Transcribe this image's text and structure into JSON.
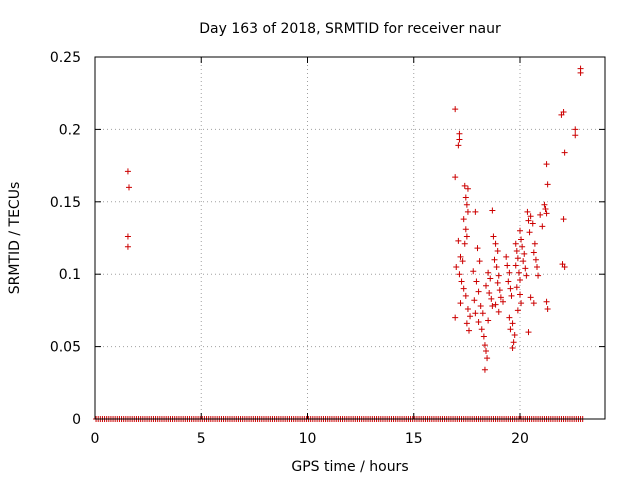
{
  "chart_data": {
    "type": "scatter",
    "title": "Day 163 of 2018, SRMTID for receiver naur",
    "xlabel": "GPS time / hours",
    "ylabel": "SRMTID / TECUs",
    "xlim": [
      0,
      24
    ],
    "ylim": [
      0,
      0.25
    ],
    "xticks": [
      0,
      5,
      10,
      15,
      20
    ],
    "xtick_labels": [
      "0",
      "5",
      "10",
      "15",
      "20"
    ],
    "yticks": [
      0,
      0.05,
      0.1,
      0.15,
      0.2,
      0.25
    ],
    "ytick_labels": [
      "0",
      "0.05",
      "0.1",
      "0.15",
      "0.2",
      "0.25"
    ],
    "grid": true,
    "marker": "+",
    "color": "#cc0000",
    "zero_band": {
      "x_start": 0.05,
      "x_end": 23.0,
      "step": 0.1,
      "y": 0
    },
    "series": [
      {
        "name": "SRMTID",
        "points": [
          [
            1.55,
            0.171
          ],
          [
            1.6,
            0.16
          ],
          [
            1.55,
            0.126
          ],
          [
            1.55,
            0.119
          ],
          [
            16.95,
            0.214
          ],
          [
            17.15,
            0.197
          ],
          [
            17.15,
            0.193
          ],
          [
            17.1,
            0.189
          ],
          [
            16.95,
            0.167
          ],
          [
            17.4,
            0.161
          ],
          [
            17.55,
            0.159
          ],
          [
            17.45,
            0.153
          ],
          [
            17.5,
            0.148
          ],
          [
            17.55,
            0.143
          ],
          [
            17.35,
            0.138
          ],
          [
            17.45,
            0.131
          ],
          [
            17.5,
            0.126
          ],
          [
            17.4,
            0.121
          ],
          [
            17.2,
            0.112
          ],
          [
            17.3,
            0.109
          ],
          [
            17.0,
            0.105
          ],
          [
            17.15,
            0.1
          ],
          [
            17.25,
            0.095
          ],
          [
            17.35,
            0.09
          ],
          [
            17.45,
            0.085
          ],
          [
            17.2,
            0.08
          ],
          [
            17.55,
            0.076
          ],
          [
            17.65,
            0.071
          ],
          [
            17.5,
            0.066
          ],
          [
            17.6,
            0.061
          ],
          [
            16.95,
            0.07
          ],
          [
            17.1,
            0.123
          ],
          [
            17.9,
            0.143
          ],
          [
            18.0,
            0.118
          ],
          [
            18.1,
            0.109
          ],
          [
            17.8,
            0.102
          ],
          [
            17.95,
            0.095
          ],
          [
            18.05,
            0.088
          ],
          [
            17.85,
            0.082
          ],
          [
            18.15,
            0.078
          ],
          [
            17.9,
            0.073
          ],
          [
            18.05,
            0.067
          ],
          [
            18.2,
            0.062
          ],
          [
            18.3,
            0.057
          ],
          [
            18.35,
            0.051
          ],
          [
            18.4,
            0.047
          ],
          [
            18.45,
            0.042
          ],
          [
            18.35,
            0.034
          ],
          [
            18.5,
            0.101
          ],
          [
            18.6,
            0.097
          ],
          [
            18.4,
            0.092
          ],
          [
            18.55,
            0.087
          ],
          [
            18.65,
            0.083
          ],
          [
            18.7,
            0.078
          ],
          [
            18.25,
            0.073
          ],
          [
            18.5,
            0.068
          ],
          [
            18.7,
            0.144
          ],
          [
            18.75,
            0.126
          ],
          [
            18.85,
            0.121
          ],
          [
            18.95,
            0.116
          ],
          [
            18.8,
            0.11
          ],
          [
            18.9,
            0.105
          ],
          [
            19.0,
            0.099
          ],
          [
            18.95,
            0.094
          ],
          [
            19.05,
            0.089
          ],
          [
            19.1,
            0.084
          ],
          [
            18.85,
            0.079
          ],
          [
            19.0,
            0.074
          ],
          [
            19.2,
            0.081
          ],
          [
            19.35,
            0.112
          ],
          [
            19.4,
            0.106
          ],
          [
            19.5,
            0.101
          ],
          [
            19.45,
            0.095
          ],
          [
            19.55,
            0.09
          ],
          [
            19.6,
            0.085
          ],
          [
            19.5,
            0.07
          ],
          [
            19.65,
            0.066
          ],
          [
            19.55,
            0.062
          ],
          [
            19.7,
            0.053
          ],
          [
            19.65,
            0.049
          ],
          [
            19.75,
            0.058
          ],
          [
            19.8,
            0.121
          ],
          [
            19.85,
            0.116
          ],
          [
            19.9,
            0.111
          ],
          [
            19.8,
            0.106
          ],
          [
            19.95,
            0.101
          ],
          [
            20.0,
            0.096
          ],
          [
            19.85,
            0.091
          ],
          [
            20.0,
            0.086
          ],
          [
            20.05,
            0.08
          ],
          [
            19.9,
            0.075
          ],
          [
            20.0,
            0.13
          ],
          [
            20.05,
            0.124
          ],
          [
            20.1,
            0.119
          ],
          [
            20.2,
            0.114
          ],
          [
            20.15,
            0.109
          ],
          [
            20.25,
            0.104
          ],
          [
            20.3,
            0.099
          ],
          [
            20.35,
            0.143
          ],
          [
            20.4,
            0.137
          ],
          [
            20.5,
            0.14
          ],
          [
            20.6,
            0.135
          ],
          [
            20.45,
            0.129
          ],
          [
            20.7,
            0.121
          ],
          [
            20.65,
            0.115
          ],
          [
            20.75,
            0.11
          ],
          [
            20.8,
            0.105
          ],
          [
            20.85,
            0.099
          ],
          [
            20.5,
            0.084
          ],
          [
            20.65,
            0.08
          ],
          [
            20.4,
            0.06
          ],
          [
            20.95,
            0.141
          ],
          [
            21.05,
            0.133
          ],
          [
            21.15,
            0.148
          ],
          [
            21.2,
            0.145
          ],
          [
            21.25,
            0.142
          ],
          [
            21.25,
            0.176
          ],
          [
            21.3,
            0.162
          ],
          [
            21.25,
            0.081
          ],
          [
            21.3,
            0.076
          ],
          [
            21.95,
            0.21
          ],
          [
            22.05,
            0.212
          ],
          [
            22.1,
            0.184
          ],
          [
            22.0,
            0.107
          ],
          [
            22.1,
            0.105
          ],
          [
            22.05,
            0.138
          ],
          [
            22.6,
            0.2
          ],
          [
            22.6,
            0.196
          ],
          [
            22.85,
            0.242
          ],
          [
            22.85,
            0.239
          ]
        ]
      }
    ]
  }
}
